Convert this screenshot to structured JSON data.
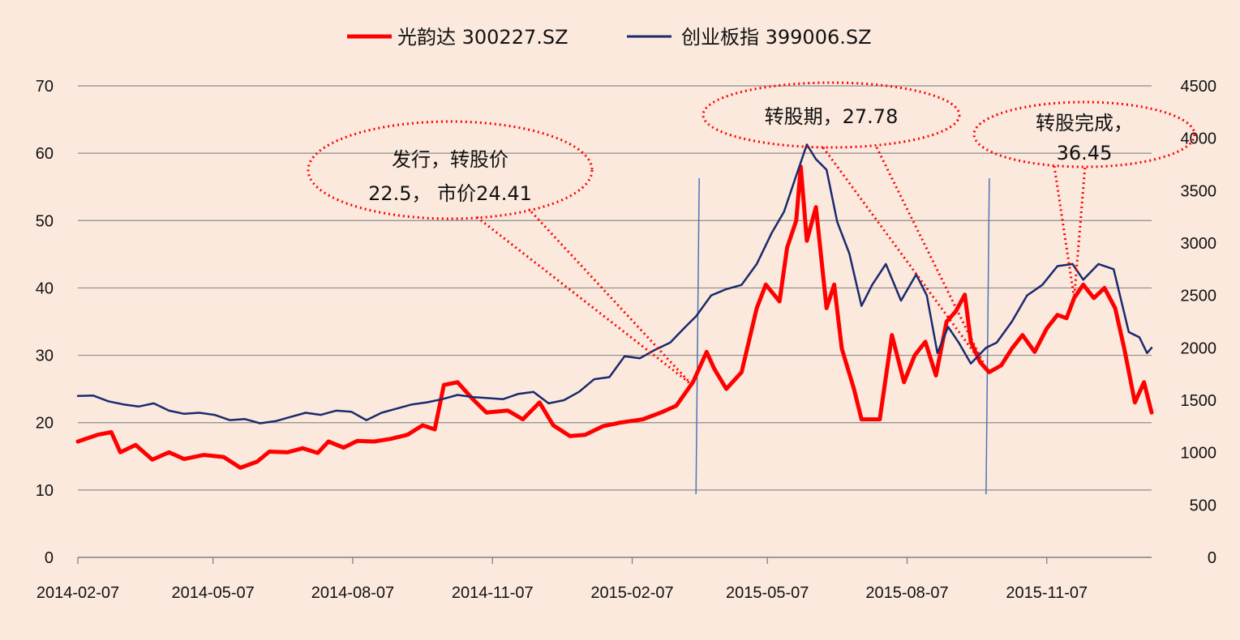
{
  "chart_data": {
    "type": "line",
    "title": "",
    "legend": {
      "position": "top",
      "entries": [
        {
          "name": "光韵达 300227.SZ",
          "color": "#ff0000"
        },
        {
          "name": "创业板指 399006.SZ",
          "color": "#1a2a6c"
        }
      ]
    },
    "x_ticks": [
      "2014-02-07",
      "2014-05-07",
      "2014-08-07",
      "2014-11-07",
      "2015-02-07",
      "2015-05-07",
      "2015-08-07",
      "2015-11-07"
    ],
    "x_range": [
      "2014-02-07",
      "2016-01-15"
    ],
    "y_left": {
      "range": [
        0,
        70
      ],
      "ticks": [
        "0",
        "10",
        "20",
        "30",
        "40",
        "50",
        "60",
        "70"
      ]
    },
    "y_right": {
      "range": [
        0,
        4500
      ],
      "ticks": [
        "0",
        "500",
        "1000",
        "1500",
        "2000",
        "2500",
        "3000",
        "3500",
        "4000",
        "4500"
      ]
    },
    "grid": "horizontal",
    "vertical_markers": [
      "2015-03-21",
      "2015-09-28"
    ],
    "series": [
      {
        "name": "光韵达 300227.SZ",
        "axis": "left",
        "color": "#ff0000",
        "points": [
          [
            "2014-02-07",
            17.2
          ],
          [
            "2014-02-20",
            18.2
          ],
          [
            "2014-03-01",
            18.6
          ],
          [
            "2014-03-07",
            15.6
          ],
          [
            "2014-03-17",
            16.7
          ],
          [
            "2014-03-28",
            14.5
          ],
          [
            "2014-04-08",
            15.6
          ],
          [
            "2014-04-18",
            14.6
          ],
          [
            "2014-05-01",
            15.2
          ],
          [
            "2014-05-14",
            14.9
          ],
          [
            "2014-05-25",
            13.3
          ],
          [
            "2014-06-05",
            14.2
          ],
          [
            "2014-06-13",
            15.7
          ],
          [
            "2014-06-25",
            15.6
          ],
          [
            "2014-07-05",
            16.2
          ],
          [
            "2014-07-15",
            15.5
          ],
          [
            "2014-07-22",
            17.2
          ],
          [
            "2014-08-01",
            16.3
          ],
          [
            "2014-08-10",
            17.3
          ],
          [
            "2014-08-21",
            17.2
          ],
          [
            "2014-09-01",
            17.6
          ],
          [
            "2014-09-12",
            18.2
          ],
          [
            "2014-09-22",
            19.6
          ],
          [
            "2014-09-30",
            19.0
          ],
          [
            "2014-10-06",
            25.6
          ],
          [
            "2014-10-15",
            26.0
          ],
          [
            "2014-10-25",
            23.5
          ],
          [
            "2014-11-03",
            21.5
          ],
          [
            "2014-11-17",
            21.8
          ],
          [
            "2014-11-27",
            20.5
          ],
          [
            "2014-12-08",
            23.0
          ],
          [
            "2014-12-17",
            19.6
          ],
          [
            "2014-12-28",
            18.0
          ],
          [
            "2015-01-07",
            18.2
          ],
          [
            "2015-01-19",
            19.5
          ],
          [
            "2015-01-30",
            20.0
          ],
          [
            "2015-02-14",
            20.5
          ],
          [
            "2015-02-26",
            21.5
          ],
          [
            "2015-03-08",
            22.5
          ],
          [
            "2015-03-19",
            26.0
          ],
          [
            "2015-03-21",
            27.0
          ],
          [
            "2015-03-28",
            30.5
          ],
          [
            "2015-04-02",
            28.0
          ],
          [
            "2015-04-10",
            25.0
          ],
          [
            "2015-04-20",
            27.5
          ],
          [
            "2015-04-30",
            37.0
          ],
          [
            "2015-05-06",
            40.5
          ],
          [
            "2015-05-15",
            38.0
          ],
          [
            "2015-05-20",
            46.0
          ],
          [
            "2015-05-26",
            50.0
          ],
          [
            "2015-05-29",
            58.0
          ],
          [
            "2015-06-02",
            47.0
          ],
          [
            "2015-06-08",
            52.0
          ],
          [
            "2015-06-15",
            37.0
          ],
          [
            "2015-06-20",
            40.5
          ],
          [
            "2015-06-25",
            31.0
          ],
          [
            "2015-07-03",
            25.0
          ],
          [
            "2015-07-08",
            20.5
          ],
          [
            "2015-07-20",
            20.5
          ],
          [
            "2015-07-28",
            33.0
          ],
          [
            "2015-08-05",
            26.0
          ],
          [
            "2015-08-12",
            30.0
          ],
          [
            "2015-08-19",
            32.0
          ],
          [
            "2015-08-26",
            27.0
          ],
          [
            "2015-09-02",
            35.0
          ],
          [
            "2015-09-08",
            36.5
          ],
          [
            "2015-09-14",
            39.0
          ],
          [
            "2015-09-18",
            32.0
          ],
          [
            "2015-09-24",
            29.0
          ],
          [
            "2015-09-30",
            27.5
          ],
          [
            "2015-10-08",
            28.5
          ],
          [
            "2015-10-15",
            31.0
          ],
          [
            "2015-10-22",
            33.0
          ],
          [
            "2015-10-30",
            30.5
          ],
          [
            "2015-11-07",
            34.0
          ],
          [
            "2015-11-14",
            36.0
          ],
          [
            "2015-11-20",
            35.5
          ],
          [
            "2015-11-25",
            38.5
          ],
          [
            "2015-12-01",
            40.5
          ],
          [
            "2015-12-08",
            38.5
          ],
          [
            "2015-12-15",
            40.0
          ],
          [
            "2015-12-22",
            37.0
          ],
          [
            "2015-12-28",
            31.0
          ],
          [
            "2016-01-04",
            23.0
          ],
          [
            "2016-01-10",
            26.0
          ],
          [
            "2016-01-15",
            21.5
          ]
        ]
      },
      {
        "name": "创业板指 399006.SZ",
        "axis": "right",
        "color": "#1a2a6c",
        "points": [
          [
            "2014-02-07",
            1540
          ],
          [
            "2014-02-17",
            1545
          ],
          [
            "2014-02-27",
            1490
          ],
          [
            "2014-03-09",
            1460
          ],
          [
            "2014-03-19",
            1440
          ],
          [
            "2014-03-29",
            1470
          ],
          [
            "2014-04-08",
            1400
          ],
          [
            "2014-04-18",
            1370
          ],
          [
            "2014-04-28",
            1380
          ],
          [
            "2014-05-08",
            1360
          ],
          [
            "2014-05-18",
            1310
          ],
          [
            "2014-05-28",
            1320
          ],
          [
            "2014-06-07",
            1280
          ],
          [
            "2014-06-17",
            1300
          ],
          [
            "2014-06-27",
            1340
          ],
          [
            "2014-07-07",
            1380
          ],
          [
            "2014-07-17",
            1360
          ],
          [
            "2014-07-27",
            1400
          ],
          [
            "2014-08-06",
            1390
          ],
          [
            "2014-08-16",
            1310
          ],
          [
            "2014-08-26",
            1380
          ],
          [
            "2014-09-05",
            1420
          ],
          [
            "2014-09-15",
            1460
          ],
          [
            "2014-09-25",
            1480
          ],
          [
            "2014-10-05",
            1510
          ],
          [
            "2014-10-15",
            1550
          ],
          [
            "2014-10-25",
            1530
          ],
          [
            "2014-11-04",
            1520
          ],
          [
            "2014-11-14",
            1510
          ],
          [
            "2014-11-24",
            1560
          ],
          [
            "2014-12-04",
            1580
          ],
          [
            "2014-12-14",
            1470
          ],
          [
            "2014-12-24",
            1500
          ],
          [
            "2015-01-03",
            1580
          ],
          [
            "2015-01-13",
            1700
          ],
          [
            "2015-01-23",
            1720
          ],
          [
            "2015-02-02",
            1920
          ],
          [
            "2015-02-12",
            1900
          ],
          [
            "2015-02-22",
            1980
          ],
          [
            "2015-03-04",
            2050
          ],
          [
            "2015-03-14",
            2200
          ],
          [
            "2015-03-21",
            2300
          ],
          [
            "2015-03-31",
            2500
          ],
          [
            "2015-04-10",
            2560
          ],
          [
            "2015-04-20",
            2600
          ],
          [
            "2015-04-30",
            2800
          ],
          [
            "2015-05-10",
            3100
          ],
          [
            "2015-05-18",
            3300
          ],
          [
            "2015-05-25",
            3600
          ],
          [
            "2015-06-02",
            3940
          ],
          [
            "2015-06-08",
            3800
          ],
          [
            "2015-06-15",
            3700
          ],
          [
            "2015-06-22",
            3200
          ],
          [
            "2015-06-30",
            2900
          ],
          [
            "2015-07-08",
            2400
          ],
          [
            "2015-07-15",
            2600
          ],
          [
            "2015-07-24",
            2800
          ],
          [
            "2015-08-03",
            2450
          ],
          [
            "2015-08-13",
            2700
          ],
          [
            "2015-08-20",
            2500
          ],
          [
            "2015-08-27",
            1950
          ],
          [
            "2015-09-03",
            2200
          ],
          [
            "2015-09-10",
            2050
          ],
          [
            "2015-09-18",
            1850
          ],
          [
            "2015-09-28",
            2000
          ],
          [
            "2015-10-05",
            2050
          ],
          [
            "2015-10-15",
            2250
          ],
          [
            "2015-10-25",
            2500
          ],
          [
            "2015-11-04",
            2600
          ],
          [
            "2015-11-14",
            2780
          ],
          [
            "2015-11-24",
            2800
          ],
          [
            "2015-12-01",
            2650
          ],
          [
            "2015-12-11",
            2800
          ],
          [
            "2015-12-21",
            2750
          ],
          [
            "2015-12-31",
            2150
          ],
          [
            "2016-01-07",
            2100
          ],
          [
            "2016-01-12",
            1950
          ],
          [
            "2016-01-15",
            2000
          ]
        ]
      }
    ],
    "annotations": [
      {
        "lines": [
          "发行，转股价",
          "22.5，  市价24.41"
        ],
        "target": "2015-03-18"
      },
      {
        "lines": [
          "转股期，27.78"
        ],
        "target": "2015-09-28"
      },
      {
        "lines": [
          "转股完成，",
          "36.45"
        ],
        "target": "2015-11-25"
      }
    ]
  }
}
